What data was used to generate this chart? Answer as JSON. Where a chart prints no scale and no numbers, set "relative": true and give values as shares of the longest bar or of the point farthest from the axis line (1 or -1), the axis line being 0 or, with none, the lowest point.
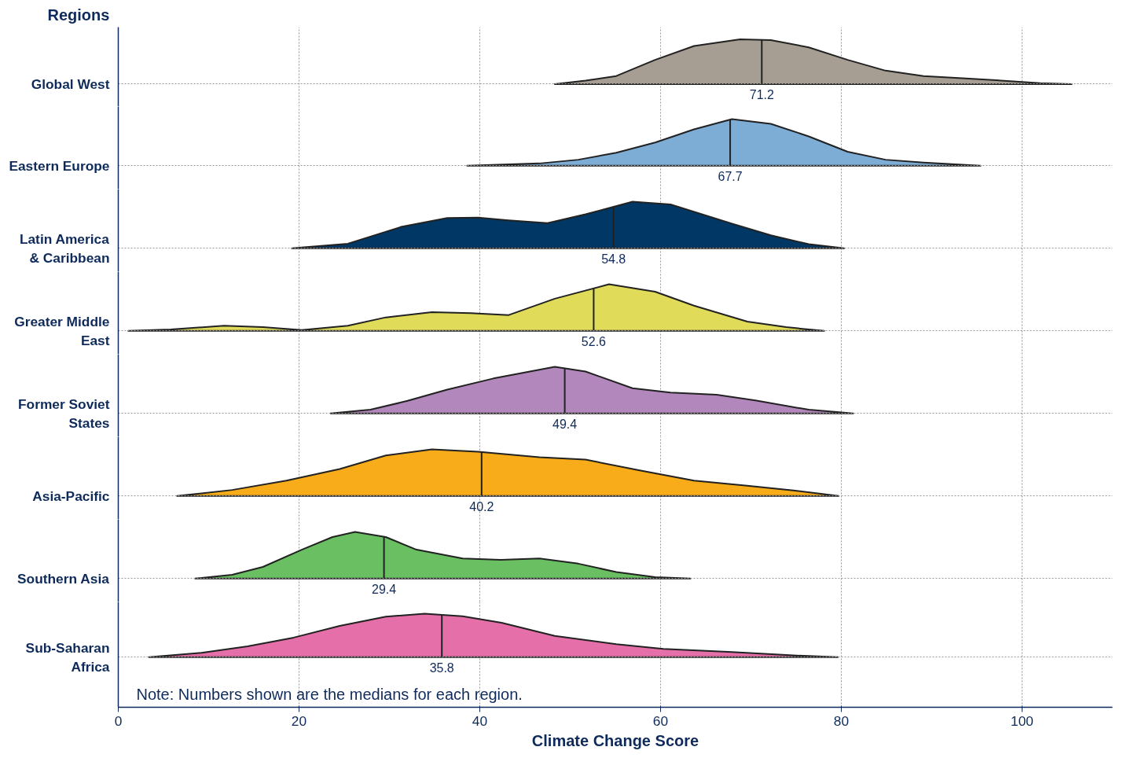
{
  "chart_data": [
    {
      "type": "area",
      "relative": true,
      "xlim": [
        0,
        110
      ],
      "xticks": [
        0,
        20,
        40,
        60,
        80,
        100
      ],
      "grid": "x",
      "tick_labels": false,
      "series": [
        {
          "name": "Global West",
          "color": "#a69d93",
          "x": [
            48.3,
            51.7,
            55.1,
            59.4,
            63.7,
            68.8,
            72.2,
            76.4,
            80.7,
            84.9,
            89.1,
            93.4,
            97.7,
            102,
            105.5
          ],
          "values": [
            0,
            0.08,
            0.18,
            0.54,
            0.85,
            1,
            0.98,
            0.82,
            0.54,
            0.3,
            0.18,
            0.13,
            0.08,
            0.02,
            0
          ]
        }
      ],
      "annotations": [
        "Regions",
        {
          "text": "71.2",
          "x": 71.2,
          "y": 0.99
        }
      ]
    },
    {
      "type": "area",
      "relative": true,
      "xlim": [
        0,
        110
      ],
      "xticks": [
        0,
        20,
        40,
        60,
        80,
        100
      ],
      "grid": "x",
      "tick_labels": false,
      "series": [
        {
          "name": "Eastern Europe",
          "color": "#7dadd5",
          "x": [
            38.6,
            46.6,
            50.9,
            55.1,
            59.4,
            63.7,
            67.9,
            72.2,
            76.4,
            80.7,
            84.9,
            89.1,
            95.4
          ],
          "values": [
            0,
            0.05,
            0.13,
            0.28,
            0.5,
            0.78,
            1,
            0.9,
            0.63,
            0.3,
            0.13,
            0.07,
            0
          ]
        }
      ],
      "annotations": [
        {
          "text": "67.7",
          "x": 67.7,
          "y": 0.99
        }
      ]
    },
    {
      "type": "area",
      "relative": true,
      "xlim": [
        0,
        110
      ],
      "xticks": [
        0,
        20,
        40,
        60,
        80,
        100
      ],
      "grid": "x",
      "tick_labels": false,
      "series": [
        {
          "name": "Latin America & Caribbean",
          "color": "#003764",
          "x": [
            19.2,
            25.4,
            31.3,
            36.4,
            39.8,
            43.2,
            47.5,
            51.7,
            56.9,
            61.1,
            67.9,
            72.2,
            76.4,
            80.3
          ],
          "values": [
            0,
            0.1,
            0.46,
            0.65,
            0.66,
            0.6,
            0.54,
            0.73,
            1,
            0.94,
            0.53,
            0.28,
            0.09,
            0
          ]
        }
      ],
      "annotations": [
        {
          "text": "54.8",
          "x": 54.8,
          "y": 0.89
        }
      ]
    },
    {
      "type": "area",
      "relative": true,
      "xlim": [
        0,
        110
      ],
      "xticks": [
        0,
        20,
        40,
        60,
        80,
        100
      ],
      "grid": "x",
      "tick_labels": false,
      "series": [
        {
          "name": "Greater Middle East",
          "color": "#e0dc5a",
          "x": [
            1.1,
            5.8,
            11.7,
            16,
            20.3,
            25.4,
            29.6,
            34.7,
            39,
            43.2,
            48.3,
            54.3,
            59.4,
            63.7,
            69.6,
            73.9,
            78.1
          ],
          "values": [
            0,
            0.03,
            0.11,
            0.08,
            0.02,
            0.11,
            0.29,
            0.4,
            0.38,
            0.34,
            0.69,
            1,
            0.84,
            0.54,
            0.2,
            0.08,
            0
          ]
        }
      ],
      "annotations": [
        {
          "text": "52.6",
          "x": 52.6,
          "y": 0.91
        }
      ]
    },
    {
      "type": "area",
      "relative": true,
      "xlim": [
        0,
        110
      ],
      "xticks": [
        0,
        20,
        40,
        60,
        80,
        100
      ],
      "grid": "x",
      "tick_labels": false,
      "series": [
        {
          "name": "Former Soviet States",
          "color": "#b287bb",
          "x": [
            23.5,
            27.9,
            32,
            36.4,
            41.5,
            48.3,
            51.7,
            56.9,
            61.1,
            66.2,
            70.5,
            76.4,
            81.3
          ],
          "values": [
            0,
            0.08,
            0.27,
            0.51,
            0.75,
            1,
            0.9,
            0.54,
            0.45,
            0.4,
            0.28,
            0.08,
            0
          ]
        }
      ],
      "annotations": [
        {
          "text": "49.4",
          "x": 49.4,
          "y": 0.97
        }
      ]
    },
    {
      "type": "area",
      "relative": true,
      "xlim": [
        0,
        110
      ],
      "xticks": [
        0,
        20,
        40,
        60,
        80,
        100
      ],
      "grid": "x",
      "tick_labels": false,
      "series": [
        {
          "name": "Asia-Pacific",
          "color": "#f8ac1a",
          "x": [
            6.5,
            12.6,
            18.6,
            24.5,
            29.6,
            34.7,
            39.8,
            46.6,
            51.7,
            57.7,
            63.7,
            69.6,
            74.7,
            79.7
          ],
          "values": [
            0,
            0.13,
            0.33,
            0.58,
            0.87,
            1,
            0.95,
            0.83,
            0.78,
            0.55,
            0.33,
            0.22,
            0.12,
            0
          ]
        }
      ],
      "annotations": [
        {
          "text": "40.2",
          "x": 40.2,
          "y": 0.94
        }
      ]
    },
    {
      "type": "area",
      "relative": true,
      "xlim": [
        0,
        110
      ],
      "xticks": [
        0,
        20,
        40,
        60,
        80,
        100
      ],
      "grid": "x",
      "tick_labels": false,
      "series": [
        {
          "name": "Southern Asia",
          "color": "#6bbf63",
          "x": [
            8.5,
            12.6,
            16,
            20.3,
            23.7,
            26.2,
            29.6,
            33,
            38.1,
            42.3,
            46.6,
            50.9,
            55.1,
            59.4,
            63.3
          ],
          "values": [
            0,
            0.08,
            0.25,
            0.62,
            0.89,
            1,
            0.89,
            0.62,
            0.43,
            0.4,
            0.43,
            0.32,
            0.14,
            0.03,
            0
          ]
        }
      ],
      "annotations": [
        {
          "text": "29.4",
          "x": 29.4,
          "y": 0.9
        }
      ]
    },
    {
      "type": "area",
      "relative": true,
      "xlim": [
        0,
        110
      ],
      "xticks": [
        0,
        20,
        40,
        60,
        80,
        100
      ],
      "grid": "x",
      "tick_labels": "x",
      "xlabel": "Climate Change Score",
      "series": [
        {
          "name": "Sub-Saharan Africa",
          "color": "#e56fa8",
          "x": [
            3.4,
            9.2,
            14.3,
            19.4,
            24.5,
            29.6,
            33.9,
            38.1,
            42.4,
            48.3,
            55.1,
            60.3,
            67.9,
            74.7,
            79.6
          ],
          "values": [
            0,
            0.1,
            0.25,
            0.45,
            0.72,
            0.93,
            1,
            0.94,
            0.79,
            0.49,
            0.3,
            0.19,
            0.12,
            0.04,
            0
          ]
        }
      ],
      "annotations": [
        {
          "text": "35.8",
          "x": 35.8,
          "y": 0.97
        },
        "Note: Numbers shown are the medians for each region."
      ]
    }
  ]
}
